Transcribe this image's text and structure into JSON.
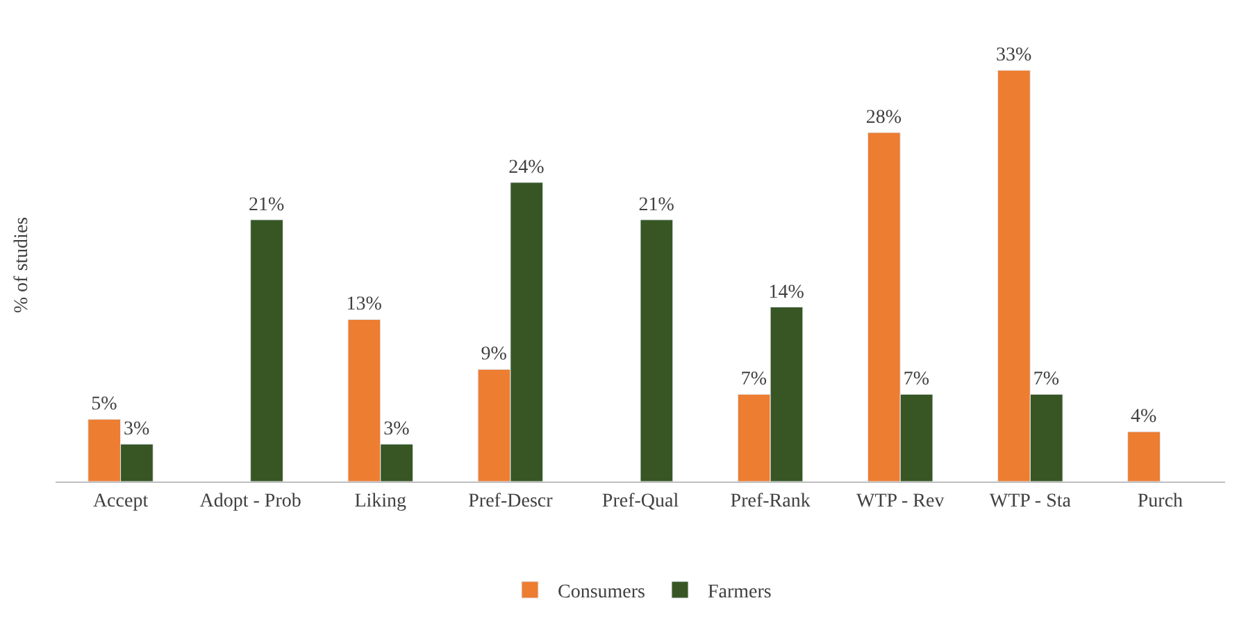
{
  "chart_data": {
    "type": "bar",
    "ylabel": "% of studies",
    "categories": [
      "Accept",
      "Adopt - Prob",
      "Liking",
      "Pref-Descr",
      "Pref-Qual",
      "Pref-Rank",
      "WTP - Rev",
      "WTP - Sta",
      "Purch"
    ],
    "series": [
      {
        "name": "Consumers",
        "color": "#ed7d31",
        "values": [
          5,
          null,
          13,
          9,
          null,
          7,
          28,
          33,
          4
        ],
        "value_labels": [
          "5%",
          null,
          "13%",
          "9%",
          null,
          "7%",
          "28%",
          "33%",
          "4%"
        ]
      },
      {
        "name": "Farmers",
        "color": "#375623",
        "values": [
          3,
          21,
          3,
          24,
          21,
          14,
          7,
          7,
          null
        ],
        "value_labels": [
          "3%",
          "21%",
          "3%",
          "24%",
          "21%",
          "14%",
          "7%",
          "7%",
          null
        ]
      }
    ],
    "legend": "bottom",
    "tick_labels": "x"
  }
}
